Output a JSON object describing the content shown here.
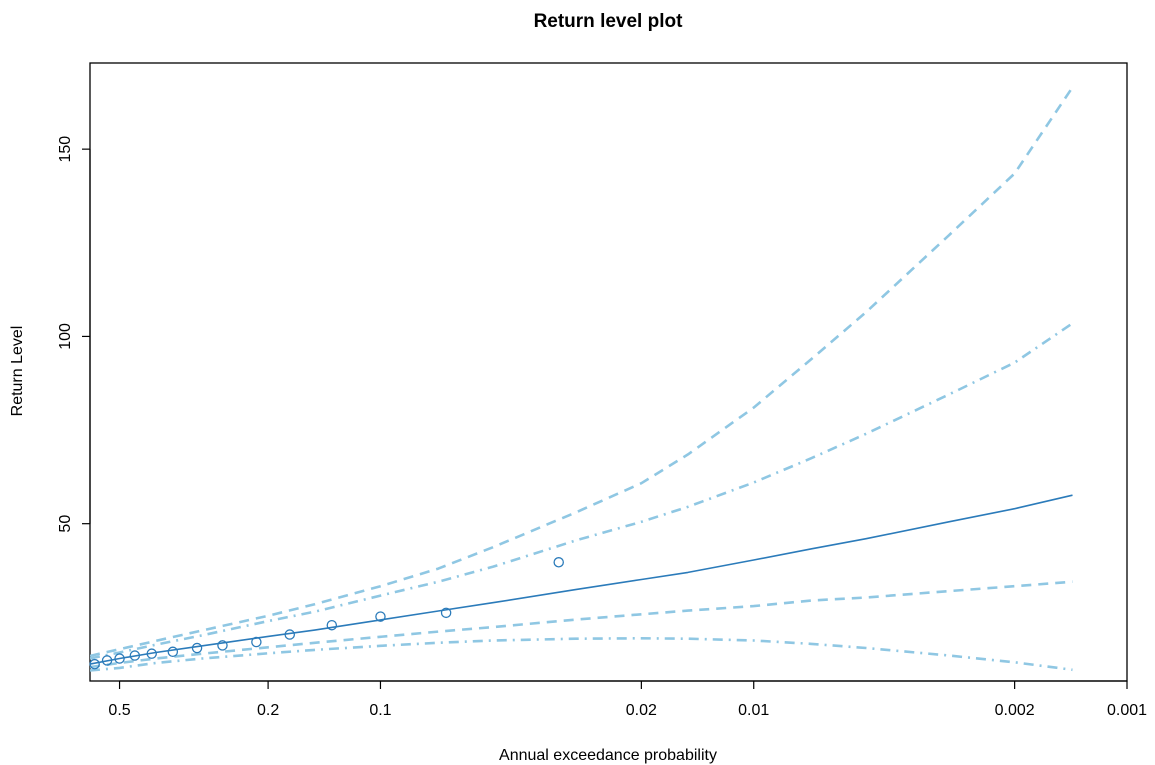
{
  "chart_data": {
    "type": "line",
    "title": "Return level plot",
    "xlabel": "Annual exceedance probability",
    "ylabel": "Return Level",
    "x_scale": "log-reversed",
    "xlim": [
      0.6,
      0.001
    ],
    "ylim": [
      8,
      173
    ],
    "x_ticks": [
      {
        "value": 0.5,
        "label": "0.5"
      },
      {
        "value": 0.2,
        "label": "0.2"
      },
      {
        "value": 0.1,
        "label": "0.1"
      },
      {
        "value": 0.02,
        "label": "0.02"
      },
      {
        "value": 0.01,
        "label": "0.01"
      },
      {
        "value": 0.002,
        "label": "0.002"
      },
      {
        "value": 0.001,
        "label": "0.001"
      }
    ],
    "y_ticks": [
      {
        "value": 50,
        "label": "50"
      },
      {
        "value": 100,
        "label": "100"
      },
      {
        "value": 150,
        "label": "150"
      }
    ],
    "grid": false,
    "legend": "none",
    "colors": {
      "estimate": "#2b7bba",
      "ci": "#8fc7e3",
      "axis": "#000000"
    },
    "series": [
      {
        "role": "estimate",
        "style": "solid",
        "x": [
          0.6,
          0.5,
          0.4,
          0.3,
          0.2,
          0.15,
          0.1,
          0.07,
          0.05,
          0.03,
          0.02,
          0.015,
          0.01,
          0.007,
          0.005,
          0.003,
          0.002,
          0.0014
        ],
        "y": [
          12.5,
          14.0,
          15.6,
          17.4,
          19.9,
          21.6,
          24.3,
          26.7,
          28.9,
          32.4,
          35.1,
          37.0,
          40.3,
          43.3,
          46.0,
          50.5,
          54.0,
          57.6
        ]
      },
      {
        "role": "ci-outer-upper",
        "style": "dashed",
        "x": [
          0.6,
          0.5,
          0.4,
          0.3,
          0.2,
          0.15,
          0.1,
          0.07,
          0.05,
          0.03,
          0.02,
          0.015,
          0.01,
          0.007,
          0.005,
          0.003,
          0.002,
          0.0014
        ],
        "y": [
          14.7,
          16.5,
          18.7,
          21.5,
          25.4,
          28.5,
          33.3,
          38.0,
          43.7,
          53.0,
          60.8,
          68.5,
          81.0,
          94.0,
          106.5,
          127.0,
          143.5,
          166.5
        ]
      },
      {
        "role": "ci-inner-upper",
        "style": "dashdot",
        "x": [
          0.6,
          0.5,
          0.4,
          0.3,
          0.2,
          0.15,
          0.1,
          0.07,
          0.05,
          0.03,
          0.02,
          0.015,
          0.01,
          0.007,
          0.005,
          0.003,
          0.002,
          0.0014
        ],
        "y": [
          14.0,
          15.6,
          17.7,
          20.2,
          24.0,
          26.5,
          30.8,
          34.5,
          38.5,
          45.5,
          50.5,
          54.5,
          61.0,
          67.5,
          74.0,
          84.5,
          93.0,
          103.5
        ]
      },
      {
        "role": "ci-inner-lower",
        "style": "dashdot",
        "x": [
          0.6,
          0.5,
          0.4,
          0.3,
          0.2,
          0.15,
          0.1,
          0.07,
          0.05,
          0.03,
          0.02,
          0.015,
          0.01,
          0.007,
          0.005,
          0.003,
          0.002,
          0.0014
        ],
        "y": [
          10.8,
          11.5,
          12.8,
          14.0,
          15.4,
          16.3,
          17.4,
          18.2,
          18.8,
          19.3,
          19.4,
          19.3,
          18.8,
          17.9,
          16.8,
          14.8,
          13.0,
          11.0
        ]
      },
      {
        "role": "ci-outer-lower",
        "style": "dashed",
        "x": [
          0.6,
          0.5,
          0.4,
          0.3,
          0.2,
          0.15,
          0.1,
          0.07,
          0.05,
          0.03,
          0.02,
          0.015,
          0.01,
          0.007,
          0.005,
          0.003,
          0.002,
          0.0014
        ],
        "y": [
          11.7,
          12.8,
          14.0,
          15.3,
          17.0,
          18.2,
          19.8,
          21.2,
          22.4,
          24.4,
          25.8,
          26.8,
          28.0,
          29.5,
          30.3,
          32.0,
          33.3,
          34.5
        ]
      }
    ],
    "points": {
      "role": "empirical",
      "marker": "circle-open",
      "x": [
        0.583,
        0.54,
        0.5,
        0.455,
        0.41,
        0.36,
        0.31,
        0.265,
        0.215,
        0.175,
        0.135,
        0.1,
        0.0667,
        0.0333
      ],
      "y": [
        12.5,
        13.5,
        14.0,
        14.8,
        15.3,
        15.8,
        16.8,
        17.5,
        18.4,
        20.4,
        22.9,
        25.2,
        26.2,
        39.7
      ]
    }
  }
}
